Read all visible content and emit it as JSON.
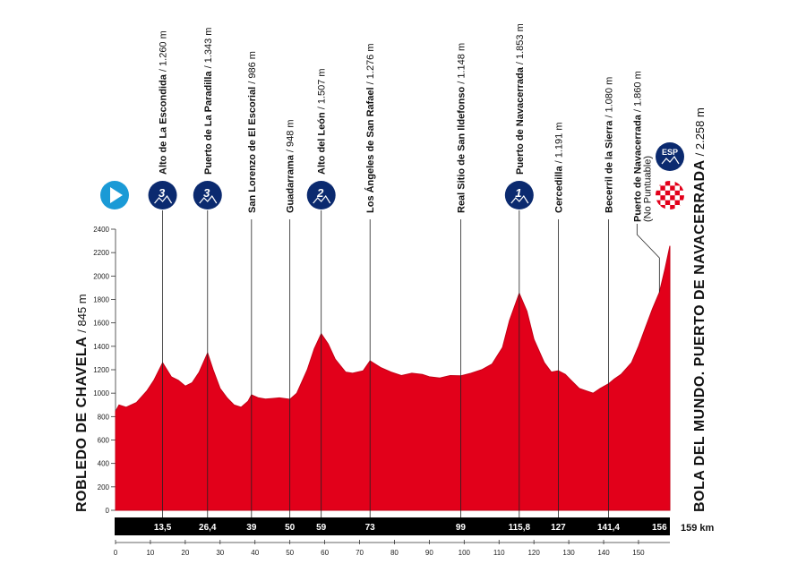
{
  "start": {
    "name": "ROBLEDO DE CHAVELA",
    "altitude": "845 m"
  },
  "finish": {
    "name": "BOLA DEL MUNDO. PUERTO DE NAVACERRADA",
    "altitude": "2.258 m"
  },
  "total_distance_label": "159 km",
  "colors": {
    "profile": "#e2001a",
    "marker": "#0b2a6f",
    "bar": "#000000"
  },
  "points": [
    {
      "km": 13.5,
      "km_label": "13,5",
      "name": "Alto de La Escondida",
      "alt": "1.260 m",
      "cat": "3",
      "alt_value": 1260
    },
    {
      "km": 26.4,
      "km_label": "26,4",
      "name": "Puerto de La Paradilla",
      "alt": "1.343 m",
      "cat": "3",
      "alt_value": 1343
    },
    {
      "km": 39,
      "km_label": "39",
      "name": "San Lorenzo de El Escorial",
      "alt": "986 m",
      "cat": "",
      "alt_value": 986
    },
    {
      "km": 50,
      "km_label": "50",
      "name": "Guadarrama",
      "alt": "948 m",
      "cat": "",
      "alt_value": 948
    },
    {
      "km": 59,
      "km_label": "59",
      "name": "Alto del León",
      "alt": "1.507 m",
      "cat": "2",
      "alt_value": 1507
    },
    {
      "km": 73,
      "km_label": "73",
      "name": "Los Ángeles de San Rafael",
      "alt": "1.276 m",
      "cat": "",
      "alt_value": 1276
    },
    {
      "km": 99,
      "km_label": "99",
      "name": "Real Sitio de San Ildefonso",
      "alt": "1.148 m",
      "cat": "",
      "alt_value": 1148
    },
    {
      "km": 115.8,
      "km_label": "115,8",
      "name": "Puerto de Navacerrada",
      "alt": "1.853 m",
      "cat": "1",
      "alt_value": 1853
    },
    {
      "km": 127,
      "km_label": "127",
      "name": "Cercedilla",
      "alt": "1.191 m",
      "cat": "",
      "alt_value": 1191
    },
    {
      "km": 141.4,
      "km_label": "141,4",
      "name": "Becerril de la Sierra",
      "alt": "1.080 m",
      "cat": "",
      "alt_value": 1080
    },
    {
      "km": 156,
      "km_label": "156",
      "name": "Puerto de Navacerrada",
      "alt": "1.860 m",
      "note": "(No Puntuable)",
      "cat": "",
      "alt_value": 1860
    }
  ],
  "finish_badge": "ESP",
  "chart_data": {
    "type": "area",
    "xlim": [
      0,
      159
    ],
    "ylim": [
      0,
      2400
    ],
    "x_ticks": [
      0,
      10,
      20,
      30,
      40,
      50,
      60,
      70,
      80,
      90,
      100,
      110,
      120,
      130,
      140,
      150
    ],
    "y_ticks": [
      0,
      200,
      400,
      600,
      800,
      1000,
      1200,
      1400,
      1600,
      1800,
      2000,
      2200,
      2400
    ],
    "x": [
      0,
      1,
      3,
      6,
      9,
      11,
      13.5,
      16,
      18,
      20,
      22,
      24,
      26.4,
      28,
      30,
      32,
      34,
      36,
      38,
      39,
      41,
      43,
      45,
      47,
      50,
      52,
      55,
      57,
      59,
      61,
      63,
      66,
      68,
      71,
      73,
      76,
      79,
      82,
      85,
      88,
      90,
      93,
      96,
      99,
      102,
      105,
      108,
      111,
      113,
      115.8,
      118,
      120,
      123,
      125,
      127,
      129,
      131,
      133,
      135,
      137,
      139,
      141.4,
      143,
      145,
      148,
      150,
      152,
      154,
      156,
      157.5,
      159
    ],
    "y": [
      845,
      900,
      880,
      920,
      1020,
      1110,
      1260,
      1140,
      1110,
      1060,
      1090,
      1180,
      1343,
      1200,
      1040,
      960,
      900,
      880,
      930,
      986,
      960,
      950,
      955,
      960,
      948,
      1000,
      1200,
      1380,
      1507,
      1420,
      1290,
      1180,
      1170,
      1190,
      1276,
      1220,
      1180,
      1150,
      1170,
      1160,
      1140,
      1130,
      1150,
      1148,
      1170,
      1200,
      1250,
      1390,
      1620,
      1853,
      1700,
      1460,
      1260,
      1180,
      1191,
      1160,
      1100,
      1040,
      1020,
      1000,
      1040,
      1080,
      1120,
      1160,
      1260,
      1400,
      1560,
      1720,
      1860,
      2050,
      2258
    ]
  }
}
